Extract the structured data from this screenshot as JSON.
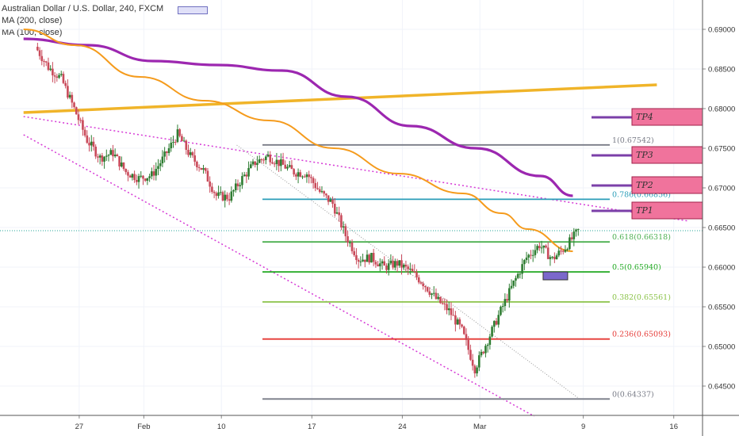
{
  "header": {
    "symbol_title": "Australian Dollar / U.S. Dollar, 240, FXCM",
    "ma1_label": "MA (200, close)",
    "ma2_label": "MA (100, close)"
  },
  "chart_data": {
    "type": "candlestick",
    "title": "Australian Dollar / U.S. Dollar, 240, FXCM",
    "y_axis_ticks": [
      "0.69000",
      "0.68500",
      "0.68000",
      "0.67500",
      "0.67000",
      "0.66500",
      "0.66000",
      "0.65500",
      "0.65000",
      "0.64500"
    ],
    "y_range": [
      0.641,
      0.6942
    ],
    "x_axis_ticks": [
      "27",
      "Feb",
      "10",
      "17",
      "24",
      "Mar",
      "9",
      "16"
    ],
    "x_ticks_day_index": [
      3,
      8,
      14,
      21,
      28,
      34,
      42,
      49
    ],
    "current_price_approx": 0.6646,
    "fibonacci_levels": [
      {
        "label": "1(0.67542)",
        "value": 0.67542,
        "color": "#787b86"
      },
      {
        "label": "0.786(0.66856)",
        "value": 0.66856,
        "color": "#2a9db8"
      },
      {
        "label": "0.618(0.66318)",
        "value": 0.66318,
        "color": "#4caf50"
      },
      {
        "label": "0.5(0.65940)",
        "value": 0.6594,
        "color": "#22aa22"
      },
      {
        "label": "0.382(0.65561)",
        "value": 0.65561,
        "color": "#8bc34a"
      },
      {
        "label": "0.236(0.65093)",
        "value": 0.65093,
        "color": "#e53935"
      },
      {
        "label": "0(0.64337)",
        "value": 0.64337,
        "color": "#787b86"
      }
    ],
    "targets": [
      {
        "label": "TP1",
        "value": 0.6672
      },
      {
        "label": "TP2",
        "value": 0.6704
      },
      {
        "label": "TP3",
        "value": 0.6742
      },
      {
        "label": "TP4",
        "value": 0.679
      }
    ],
    "close_path": [
      [
        0,
        0.6878
      ],
      [
        1,
        0.6852
      ],
      [
        2,
        0.6838
      ],
      [
        3,
        0.68
      ],
      [
        4,
        0.676
      ],
      [
        5,
        0.6738
      ],
      [
        6,
        0.6744
      ],
      [
        7,
        0.672
      ],
      [
        8,
        0.6712
      ],
      [
        9,
        0.6716
      ],
      [
        10,
        0.674
      ],
      [
        11,
        0.6768
      ],
      [
        12,
        0.674
      ],
      [
        13,
        0.6722
      ],
      [
        14,
        0.669
      ],
      [
        15,
        0.6688
      ],
      [
        16,
        0.6712
      ],
      [
        17,
        0.6732
      ],
      [
        18,
        0.674
      ],
      [
        19,
        0.673
      ],
      [
        20,
        0.672
      ],
      [
        21,
        0.6718
      ],
      [
        22,
        0.6695
      ],
      [
        23,
        0.668
      ],
      [
        24,
        0.664
      ],
      [
        25,
        0.661
      ],
      [
        26,
        0.6612
      ],
      [
        27,
        0.66
      ],
      [
        28,
        0.6605
      ],
      [
        29,
        0.6595
      ],
      [
        30,
        0.658
      ],
      [
        31,
        0.656
      ],
      [
        32,
        0.6545
      ],
      [
        33,
        0.652
      ],
      [
        34,
        0.6472
      ],
      [
        35,
        0.6508
      ],
      [
        36,
        0.6545
      ],
      [
        37,
        0.658
      ],
      [
        38,
        0.6612
      ],
      [
        39,
        0.6628
      ],
      [
        40,
        0.661
      ],
      [
        41,
        0.6625
      ],
      [
        42,
        0.6646
      ]
    ],
    "ma200_path": [
      [
        -1,
        0.6888
      ],
      [
        4,
        0.688
      ],
      [
        9,
        0.686
      ],
      [
        14,
        0.6855
      ],
      [
        19,
        0.6848
      ],
      [
        24,
        0.6815
      ],
      [
        29,
        0.6778
      ],
      [
        34,
        0.675
      ],
      [
        39,
        0.6715
      ],
      [
        41.5,
        0.669
      ]
    ],
    "ma100_path": [
      [
        -1,
        0.69
      ],
      [
        3,
        0.688
      ],
      [
        8,
        0.684
      ],
      [
        13,
        0.681
      ],
      [
        18,
        0.6785
      ],
      [
        23,
        0.675
      ],
      [
        28,
        0.6718
      ],
      [
        33,
        0.6693
      ],
      [
        36,
        0.6668
      ],
      [
        38,
        0.6648
      ],
      [
        41.5,
        0.662
      ]
    ],
    "trendline_long": [
      [
        -1,
        0.6795
      ],
      [
        48,
        0.683
      ]
    ],
    "channel_top": [
      [
        -1,
        0.679
      ],
      [
        50.5,
        0.6658
      ]
    ],
    "channel_bottom": [
      [
        -1,
        0.6767
      ],
      [
        38.5,
        0.6412
      ]
    ],
    "diagonal_fib": [
      [
        15.5,
        0.6754
      ],
      [
        42,
        0.6434
      ]
    ],
    "entry_box": {
      "x0": 39.2,
      "x1": 41.1,
      "y0": 0.6584,
      "y1": 0.6594
    }
  },
  "colors": {
    "ma200": "#9c27b0",
    "ma100": "#f59b1c",
    "trendline": "#f0b429",
    "channel": "#d63ad6",
    "up_candle": "#2e7d32",
    "down_candle": "#c94a5a",
    "tp_box": "#f0739c",
    "tp_line": "#7b3fa8",
    "entry_box": "#7b68cc"
  }
}
